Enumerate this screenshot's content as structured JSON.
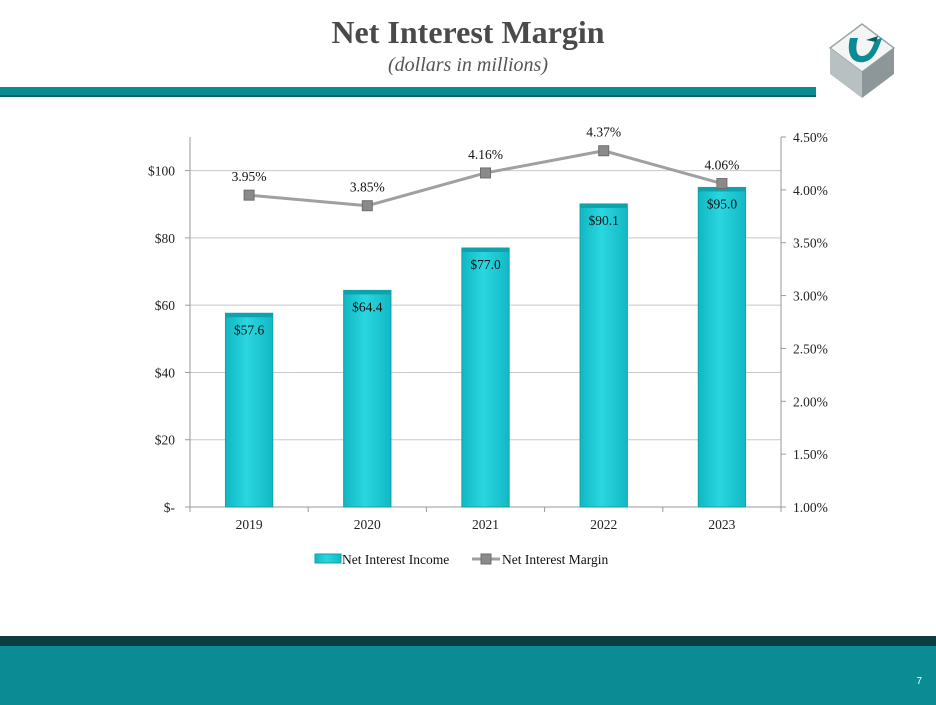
{
  "slide": {
    "title": "Net Interest Margin",
    "subtitle": "(dollars in millions)",
    "page_number": "7"
  },
  "colors": {
    "bar": "#19c8d4",
    "bar_edge": "#0ea2ad",
    "line": "#a0a0a0",
    "marker": "#8a8a8a",
    "accent": "#0b8c95"
  },
  "chart_data": {
    "type": "bar+line",
    "categories": [
      "2019",
      "2020",
      "2021",
      "2022",
      "2023"
    ],
    "series": [
      {
        "name": "Net Interest Income",
        "type": "bar",
        "axis": "left",
        "values": [
          57.6,
          64.4,
          77.0,
          90.1,
          95.0
        ],
        "labels": [
          "$57.6",
          "$64.4",
          "$77.0",
          "$90.1",
          "$95.0"
        ]
      },
      {
        "name": "Net Interest Margin",
        "type": "line",
        "axis": "right",
        "values": [
          3.95,
          3.85,
          4.16,
          4.37,
          4.06
        ],
        "labels": [
          "3.95%",
          "3.85%",
          "4.16%",
          "4.37%",
          "4.06%"
        ]
      }
    ],
    "y_left": {
      "min": 0,
      "max": 110,
      "ticks": [
        0,
        20,
        40,
        60,
        80,
        100
      ],
      "tick_labels": [
        "$-",
        "$20",
        "$40",
        "$60",
        "$80",
        "$100"
      ]
    },
    "y_right": {
      "min": 1.0,
      "max": 4.5,
      "ticks": [
        1.0,
        1.5,
        2.0,
        2.5,
        3.0,
        3.5,
        4.0,
        4.5
      ],
      "tick_labels": [
        "1.00%",
        "1.50%",
        "2.00%",
        "2.50%",
        "3.00%",
        "3.50%",
        "4.00%",
        "4.50%"
      ]
    },
    "gridlines": true,
    "legend": {
      "position": "bottom",
      "entries": [
        "Net Interest Income",
        "Net Interest Margin"
      ]
    }
  }
}
